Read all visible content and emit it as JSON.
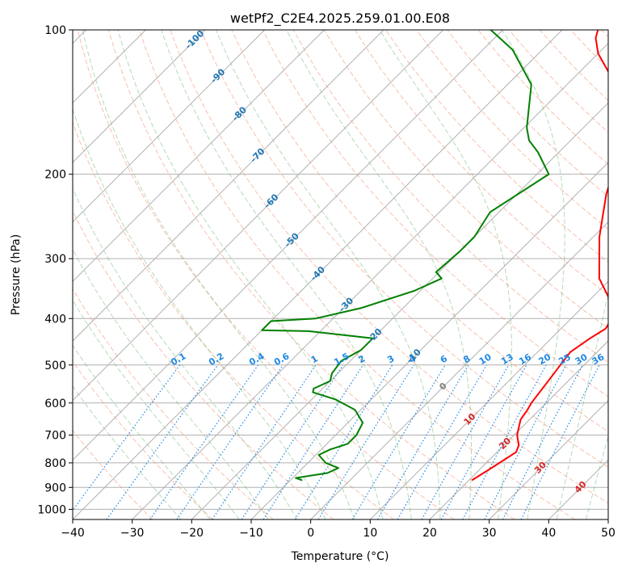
{
  "chart_data": {
    "type": "line",
    "title": "wetPf2_C2E4.2025.259.01.00.E08",
    "xlabel": "Temperature (°C)",
    "ylabel": "Pressure (hPa)",
    "xlim": [
      -40,
      50
    ],
    "ylim": [
      1050,
      100
    ],
    "y_scale": "log",
    "x_ticks": [
      -40,
      -30,
      -20,
      -10,
      0,
      10,
      20,
      30,
      40,
      50
    ],
    "y_ticks": [
      100,
      200,
      300,
      400,
      500,
      600,
      700,
      800,
      900,
      1000
    ],
    "grid": true,
    "series": [
      {
        "color": "#ff0000",
        "points": [
          [
            20.5,
            870
          ],
          [
            21.5,
            830
          ],
          [
            23.2,
            760
          ],
          [
            22.5,
            735
          ],
          [
            20.5,
            700
          ],
          [
            18.5,
            650
          ],
          [
            18.0,
            620
          ],
          [
            17.5,
            600
          ],
          [
            16.5,
            530
          ],
          [
            16.0,
            500
          ],
          [
            15.5,
            470
          ],
          [
            16.5,
            440
          ],
          [
            17.5,
            420
          ],
          [
            17.0,
            405
          ],
          [
            14.0,
            370
          ],
          [
            8.0,
            330
          ],
          [
            1.0,
            270
          ],
          [
            -5.0,
            220
          ],
          [
            -8.5,
            190
          ],
          [
            -13.5,
            160
          ],
          [
            -16.0,
            150
          ],
          [
            -17.5,
            140
          ],
          [
            -24.0,
            125
          ],
          [
            -30.0,
            112
          ],
          [
            -33.0,
            104
          ],
          [
            -34.0,
            100
          ]
        ]
      },
      {
        "color": "#008000",
        "points": [
          [
            -8.0,
            870
          ],
          [
            -9.5,
            860
          ],
          [
            -5.0,
            840
          ],
          [
            -4.0,
            820
          ],
          [
            -7.0,
            800
          ],
          [
            -9.5,
            770
          ],
          [
            -8.5,
            750
          ],
          [
            -6.5,
            730
          ],
          [
            -6.5,
            700
          ],
          [
            -7.5,
            660
          ],
          [
            -11.0,
            620
          ],
          [
            -16.0,
            590
          ],
          [
            -21.0,
            570
          ],
          [
            -21.5,
            560
          ],
          [
            -20.0,
            540
          ],
          [
            -21.0,
            520
          ],
          [
            -21.5,
            490
          ],
          [
            -20.0,
            465
          ],
          [
            -20.0,
            440
          ],
          [
            -32.0,
            425
          ],
          [
            -40.0,
            423
          ],
          [
            -40.0,
            405
          ],
          [
            -33.0,
            400
          ],
          [
            -27.0,
            380
          ],
          [
            -21.0,
            350
          ],
          [
            -18.5,
            330
          ],
          [
            -20.5,
            320
          ],
          [
            -20.0,
            290
          ],
          [
            -20.0,
            270
          ],
          [
            -21.5,
            240
          ],
          [
            -18.0,
            200
          ],
          [
            -23.5,
            180
          ],
          [
            -27.0,
            170
          ],
          [
            -29.5,
            160
          ],
          [
            -36.0,
            130
          ],
          [
            -45.0,
            110
          ],
          [
            -52.0,
            100
          ]
        ]
      }
    ],
    "reference_lines": {
      "mixing_ratio_labels": [
        "0.1",
        "0.2",
        "0.4",
        "0.6",
        "1",
        "1.5",
        "2",
        "3",
        "4",
        "6",
        "8",
        "10",
        "13",
        "16",
        "20",
        "25",
        "30",
        "36"
      ],
      "isotherm_labels": [
        "-100",
        "-90",
        "-80",
        "-70",
        "-60",
        "-50",
        "-40",
        "-30",
        "-20",
        "-10",
        "0",
        "10",
        "20",
        "30",
        "40"
      ]
    }
  }
}
